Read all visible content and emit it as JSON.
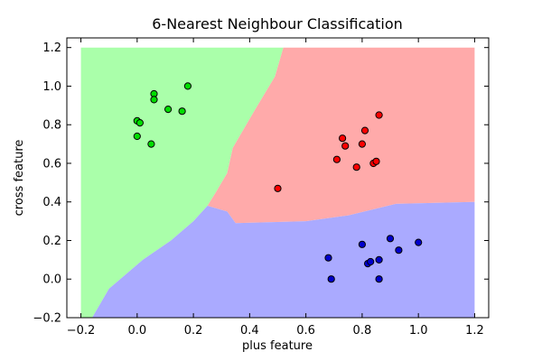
{
  "chart_data": {
    "type": "scatter",
    "title": "6-Nearest Neighbour Classification",
    "xlabel": "plus feature",
    "ylabel": "cross feature",
    "xlim": [
      -0.25,
      1.25
    ],
    "ylim": [
      -0.2,
      1.25
    ],
    "xticks": [
      -0.2,
      0.0,
      0.2,
      0.4,
      0.6,
      0.8,
      1.0,
      1.2
    ],
    "yticks": [
      -0.2,
      0.0,
      0.2,
      0.4,
      0.6,
      0.8,
      1.0,
      1.2
    ],
    "xtick_labels": [
      "−0.2",
      "0.0",
      "0.2",
      "0.4",
      "0.6",
      "0.8",
      "1.0",
      "1.2"
    ],
    "ytick_labels": [
      "−0.2",
      "0.0",
      "0.2",
      "0.4",
      "0.6",
      "0.8",
      "1.0",
      "1.2"
    ],
    "grid": false,
    "decision_regions": [
      {
        "class": "green",
        "color": "#aaffaa",
        "polygon": [
          [
            -0.2,
            -0.2
          ],
          [
            -0.2,
            1.2
          ],
          [
            0.52,
            1.2
          ],
          [
            0.49,
            1.05
          ],
          [
            0.42,
            0.88
          ],
          [
            0.38,
            0.78
          ],
          [
            0.34,
            0.68
          ],
          [
            0.32,
            0.55
          ],
          [
            0.28,
            0.45
          ],
          [
            0.25,
            0.38
          ],
          [
            0.2,
            0.3
          ],
          [
            0.12,
            0.2
          ],
          [
            0.02,
            0.1
          ],
          [
            -0.1,
            -0.05
          ],
          [
            -0.16,
            -0.2
          ]
        ]
      },
      {
        "class": "red",
        "color": "#ffaaaa",
        "polygon": [
          [
            0.52,
            1.2
          ],
          [
            1.2,
            1.2
          ],
          [
            1.2,
            0.4
          ],
          [
            0.92,
            0.39
          ],
          [
            0.75,
            0.33
          ],
          [
            0.6,
            0.3
          ],
          [
            0.35,
            0.29
          ],
          [
            0.32,
            0.35
          ],
          [
            0.25,
            0.38
          ],
          [
            0.28,
            0.45
          ],
          [
            0.32,
            0.55
          ],
          [
            0.34,
            0.68
          ],
          [
            0.38,
            0.78
          ],
          [
            0.42,
            0.88
          ],
          [
            0.49,
            1.05
          ]
        ]
      },
      {
        "class": "blue",
        "color": "#aaaaff",
        "polygon": [
          [
            -0.16,
            -0.2
          ],
          [
            1.2,
            -0.2
          ],
          [
            1.2,
            0.4
          ],
          [
            0.92,
            0.39
          ],
          [
            0.75,
            0.33
          ],
          [
            0.6,
            0.3
          ],
          [
            0.35,
            0.29
          ],
          [
            0.32,
            0.35
          ],
          [
            0.25,
            0.38
          ],
          [
            0.2,
            0.3
          ],
          [
            0.12,
            0.2
          ],
          [
            0.02,
            0.1
          ],
          [
            -0.1,
            -0.05
          ]
        ]
      }
    ],
    "series": [
      {
        "class": "green",
        "color": "#00dd00",
        "points": [
          [
            0.06,
            0.96
          ],
          [
            0.18,
            1.0
          ],
          [
            0.06,
            0.93
          ],
          [
            0.11,
            0.88
          ],
          [
            0.16,
            0.87
          ],
          [
            0.0,
            0.82
          ],
          [
            0.01,
            0.81
          ],
          [
            0.0,
            0.74
          ],
          [
            0.05,
            0.7
          ]
        ]
      },
      {
        "class": "red",
        "color": "#ff0000",
        "points": [
          [
            0.86,
            0.85
          ],
          [
            0.81,
            0.77
          ],
          [
            0.73,
            0.73
          ],
          [
            0.74,
            0.69
          ],
          [
            0.8,
            0.7
          ],
          [
            0.71,
            0.62
          ],
          [
            0.84,
            0.6
          ],
          [
            0.85,
            0.61
          ],
          [
            0.78,
            0.58
          ],
          [
            0.5,
            0.47
          ]
        ]
      },
      {
        "class": "blue",
        "color": "#0000cc",
        "points": [
          [
            0.9,
            0.21
          ],
          [
            1.0,
            0.19
          ],
          [
            0.8,
            0.18
          ],
          [
            0.93,
            0.15
          ],
          [
            0.68,
            0.11
          ],
          [
            0.86,
            0.1
          ],
          [
            0.82,
            0.08
          ],
          [
            0.83,
            0.09
          ],
          [
            0.69,
            0.0
          ],
          [
            0.86,
            0.0
          ]
        ]
      }
    ]
  }
}
